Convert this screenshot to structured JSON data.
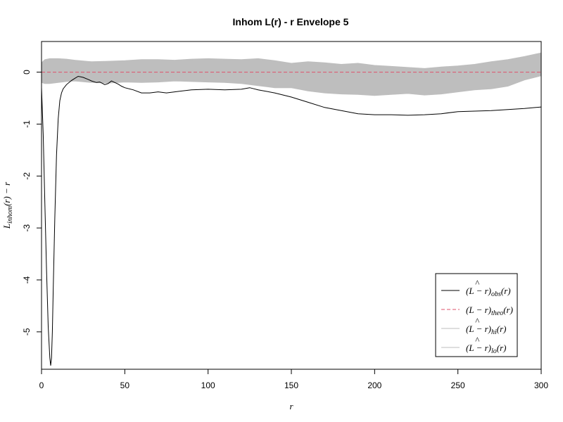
{
  "chart_data": {
    "type": "line",
    "title": "Inhom L(r) - r Envelope 5",
    "xlabel": "r",
    "ylabel": "L_inhom(r) − r",
    "ylabel_main": "L",
    "ylabel_sub": "inhom",
    "ylabel_tail": "(r) − r",
    "xlim": [
      0,
      300
    ],
    "ylim": [
      -5.72,
      0.59
    ],
    "xticks": [
      0,
      50,
      100,
      150,
      200,
      250,
      300
    ],
    "yticks": [
      0,
      -1,
      -2,
      -3,
      -4,
      -5
    ],
    "xtick_labels": [
      "0",
      "50",
      "100",
      "150",
      "200",
      "250",
      "300"
    ],
    "ytick_labels": [
      "0",
      "-1",
      "-2",
      "-3",
      "-4",
      "-5"
    ],
    "legend_position": "bottom-right",
    "series": [
      {
        "name": "obs",
        "label_main": "(L − r)",
        "label_sub": "obs",
        "label_tail": "(r)",
        "style": "solid",
        "color": "#000000",
        "x": [
          0,
          1,
          2,
          3,
          4,
          5,
          5.5,
          6,
          6.5,
          7,
          8,
          9,
          10,
          11,
          12,
          13,
          15,
          18,
          20,
          22,
          25,
          28,
          30,
          33,
          35,
          38,
          40,
          42,
          44,
          46,
          48,
          50,
          55,
          60,
          65,
          70,
          75,
          80,
          90,
          100,
          110,
          120,
          125,
          130,
          140,
          150,
          160,
          170,
          180,
          190,
          200,
          210,
          220,
          230,
          240,
          250,
          260,
          270,
          280,
          290,
          300
        ],
        "y": [
          -0.3,
          -1.2,
          -2.5,
          -3.8,
          -4.9,
          -5.5,
          -5.65,
          -5.5,
          -5.0,
          -4.2,
          -2.8,
          -1.6,
          -0.9,
          -0.55,
          -0.4,
          -0.32,
          -0.24,
          -0.16,
          -0.12,
          -0.08,
          -0.1,
          -0.14,
          -0.17,
          -0.2,
          -0.19,
          -0.24,
          -0.22,
          -0.17,
          -0.2,
          -0.23,
          -0.27,
          -0.3,
          -0.34,
          -0.4,
          -0.4,
          -0.38,
          -0.4,
          -0.38,
          -0.34,
          -0.33,
          -0.34,
          -0.33,
          -0.3,
          -0.34,
          -0.4,
          -0.48,
          -0.58,
          -0.68,
          -0.74,
          -0.8,
          -0.82,
          -0.82,
          -0.83,
          -0.82,
          -0.8,
          -0.76,
          -0.75,
          -0.74,
          -0.72,
          -0.7,
          -0.67
        ]
      },
      {
        "name": "theo",
        "label_main": "(L − r)",
        "label_sub": "theo",
        "label_tail": "(r)",
        "style": "dashed",
        "color": "#df536b",
        "x": [
          0,
          300
        ],
        "y": [
          0,
          0
        ]
      },
      {
        "name": "hi",
        "label_main": "(L − r)",
        "label_sub": "hi",
        "label_tail": "(r)",
        "style": "band-upper",
        "color": "#bebebe",
        "x": [
          0,
          2,
          5,
          10,
          15,
          20,
          30,
          40,
          50,
          60,
          70,
          80,
          90,
          100,
          110,
          120,
          130,
          140,
          150,
          160,
          170,
          180,
          190,
          200,
          210,
          220,
          230,
          240,
          250,
          260,
          270,
          280,
          290,
          300
        ],
        "y": [
          0.18,
          0.24,
          0.26,
          0.26,
          0.25,
          0.23,
          0.2,
          0.21,
          0.22,
          0.24,
          0.24,
          0.23,
          0.25,
          0.26,
          0.25,
          0.24,
          0.26,
          0.22,
          0.17,
          0.2,
          0.18,
          0.15,
          0.17,
          0.13,
          0.11,
          0.09,
          0.07,
          0.1,
          0.12,
          0.15,
          0.2,
          0.24,
          0.3,
          0.37
        ]
      },
      {
        "name": "lo",
        "label_main": "(L − r)",
        "label_sub": "lo",
        "label_tail": "(r)",
        "style": "band-lower",
        "color": "#bebebe",
        "x": [
          0,
          2,
          5,
          10,
          15,
          20,
          30,
          40,
          50,
          60,
          70,
          80,
          90,
          100,
          110,
          120,
          130,
          140,
          150,
          160,
          170,
          180,
          190,
          200,
          210,
          220,
          230,
          240,
          250,
          260,
          270,
          280,
          290,
          300
        ],
        "y": [
          -0.2,
          -0.22,
          -0.22,
          -0.2,
          -0.18,
          -0.17,
          -0.2,
          -0.21,
          -0.19,
          -0.2,
          -0.19,
          -0.17,
          -0.18,
          -0.19,
          -0.2,
          -0.22,
          -0.26,
          -0.3,
          -0.3,
          -0.36,
          -0.4,
          -0.42,
          -0.43,
          -0.45,
          -0.43,
          -0.41,
          -0.44,
          -0.42,
          -0.38,
          -0.34,
          -0.32,
          -0.27,
          -0.15,
          -0.07
        ]
      }
    ]
  }
}
